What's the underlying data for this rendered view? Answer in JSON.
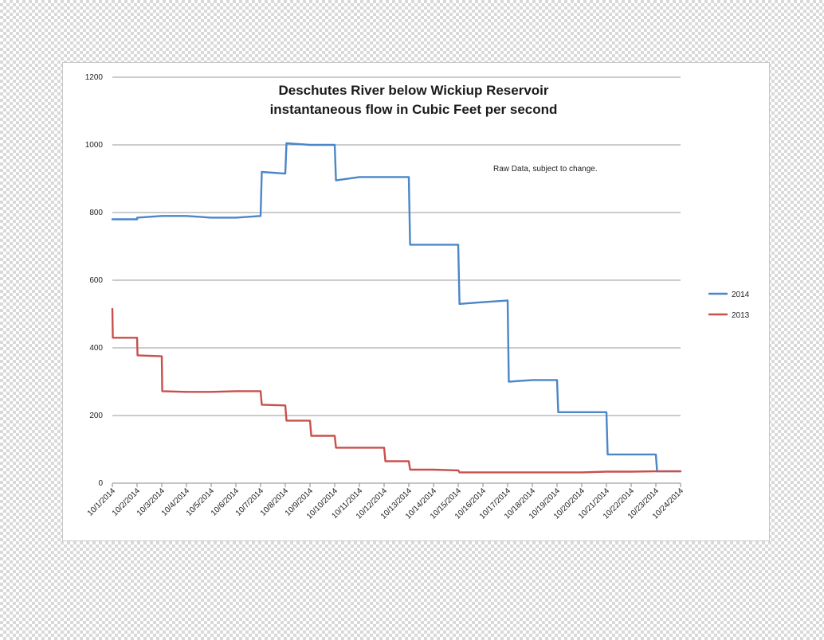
{
  "chart_data": {
    "type": "line",
    "title": "Deschutes River below Wickiup Reservoir",
    "subtitle": "instantaneous flow in Cubic Feet per second",
    "annotation": "Raw Data, subject to change.",
    "xlabel": "",
    "ylabel": "",
    "ylim": [
      0,
      1200
    ],
    "yticks": [
      0,
      200,
      400,
      600,
      800,
      1000,
      1200
    ],
    "grid": true,
    "legend_position": "right",
    "categories": [
      "10/1/2014",
      "10/2/2014",
      "10/3/2014",
      "10/4/2014",
      "10/5/2014",
      "10/6/2014",
      "10/7/2014",
      "10/8/2014",
      "10/9/2014",
      "10/10/2014",
      "10/11/2014",
      "10/12/2014",
      "10/13/2014",
      "10/14/2014",
      "10/15/2014",
      "10/16/2014",
      "10/17/2014",
      "10/18/2014",
      "10/19/2014",
      "10/20/2014",
      "10/21/2014",
      "10/22/2014",
      "10/23/2014",
      "10/24/2014"
    ],
    "series": [
      {
        "name": "2014",
        "color": "#4a86c8",
        "x": [
          0,
          1,
          1,
          2,
          3,
          4,
          5,
          6,
          6.05,
          7,
          7.05,
          8,
          9,
          9.05,
          10,
          11,
          12,
          12.05,
          13,
          14,
          14.05,
          15,
          16,
          16.05,
          17,
          18,
          18.05,
          19,
          20,
          20.05,
          21,
          22,
          22.05,
          23
        ],
        "y": [
          780,
          780,
          785,
          790,
          790,
          785,
          785,
          790,
          920,
          915,
          1005,
          1000,
          1000,
          895,
          905,
          905,
          905,
          705,
          705,
          705,
          530,
          535,
          540,
          300,
          305,
          305,
          210,
          210,
          210,
          85,
          85,
          85,
          35,
          35
        ]
      },
      {
        "name": "2013",
        "color": "#c8504b",
        "x": [
          0,
          0.02,
          1,
          1.02,
          2,
          2.02,
          3,
          4,
          5,
          6,
          6.05,
          7,
          7.05,
          8,
          8.05,
          9,
          9.05,
          10,
          11,
          11.05,
          12,
          12.05,
          13,
          14,
          14.05,
          15,
          16,
          17,
          18,
          19,
          20,
          21,
          22,
          23
        ],
        "y": [
          515,
          430,
          430,
          378,
          375,
          272,
          270,
          270,
          272,
          272,
          232,
          230,
          185,
          185,
          140,
          140,
          105,
          105,
          105,
          65,
          65,
          40,
          40,
          38,
          32,
          32,
          32,
          32,
          32,
          32,
          34,
          34,
          35,
          35
        ]
      }
    ]
  }
}
